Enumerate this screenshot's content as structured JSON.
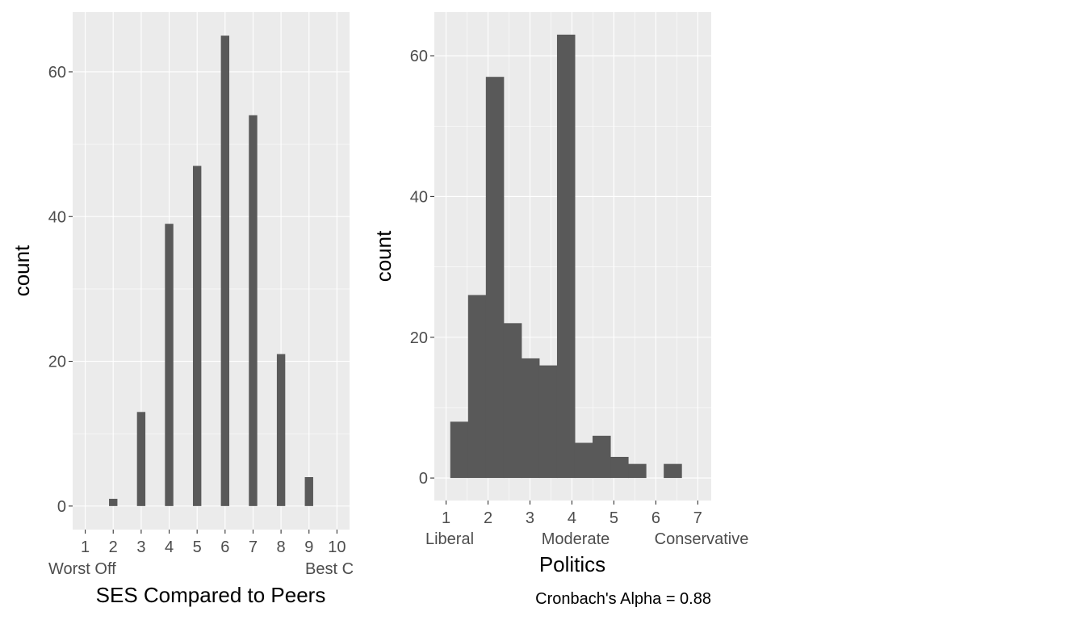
{
  "colors": {
    "panel_background": "#EBEBEB",
    "grid_major": "#FFFFFF",
    "bar_fill": "#595959",
    "axis_text": "#4D4D4D",
    "title_text": "#000000"
  },
  "chart_data": [
    {
      "type": "bar",
      "title": "",
      "xlabel": "SES Compared to Peers",
      "ylabel": "count",
      "x": [
        1,
        2,
        3,
        4,
        5,
        6,
        7,
        8,
        9,
        10
      ],
      "values": [
        0,
        1,
        13,
        39,
        47,
        65,
        54,
        21,
        4,
        0
      ],
      "xticks": [
        "1",
        "2",
        "3",
        "4",
        "5",
        "6",
        "7",
        "8",
        "9",
        "10"
      ],
      "yticks": [
        "0",
        "20",
        "40",
        "60"
      ],
      "ytick_values": [
        0,
        20,
        40,
        60
      ],
      "xlim": [
        0.55,
        10.45
      ],
      "ylim": [
        -3.25,
        68.25
      ],
      "anchor_labels": [
        "Worst Off",
        "Best C"
      ],
      "grid": true,
      "legend": "none"
    },
    {
      "type": "histogram",
      "title": "",
      "xlabel": "Politics",
      "ylabel": "count",
      "bins": [
        {
          "x0": 1.1,
          "x1": 1.524,
          "count": 8
        },
        {
          "x0": 1.524,
          "x1": 1.948,
          "count": 26
        },
        {
          "x0": 1.948,
          "x1": 2.372,
          "count": 57
        },
        {
          "x0": 2.372,
          "x1": 2.796,
          "count": 22
        },
        {
          "x0": 2.796,
          "x1": 3.22,
          "count": 17
        },
        {
          "x0": 3.22,
          "x1": 3.644,
          "count": 16
        },
        {
          "x0": 3.644,
          "x1": 4.068,
          "count": 63
        },
        {
          "x0": 4.068,
          "x1": 4.492,
          "count": 5
        },
        {
          "x0": 4.492,
          "x1": 4.916,
          "count": 6
        },
        {
          "x0": 4.916,
          "x1": 5.34,
          "count": 3
        },
        {
          "x0": 5.34,
          "x1": 5.764,
          "count": 2
        },
        {
          "x0": 5.764,
          "x1": 6.188,
          "count": 0
        },
        {
          "x0": 6.188,
          "x1": 6.612,
          "count": 2
        }
      ],
      "xticks": [
        "1",
        "2",
        "3",
        "4",
        "5",
        "6",
        "7"
      ],
      "xtick_values": [
        1,
        2,
        3,
        4,
        5,
        6,
        7
      ],
      "yticks": [
        "0",
        "20",
        "40",
        "60"
      ],
      "ytick_values": [
        0,
        20,
        40,
        60
      ],
      "xlim": [
        0.72,
        7.32
      ],
      "ylim": [
        -3.2,
        66.2
      ],
      "anchor_labels": [
        "Liberal",
        "Moderate",
        "Conservative"
      ],
      "caption": "Cronbach's Alpha =  0.88",
      "grid": true,
      "legend": "none"
    }
  ]
}
